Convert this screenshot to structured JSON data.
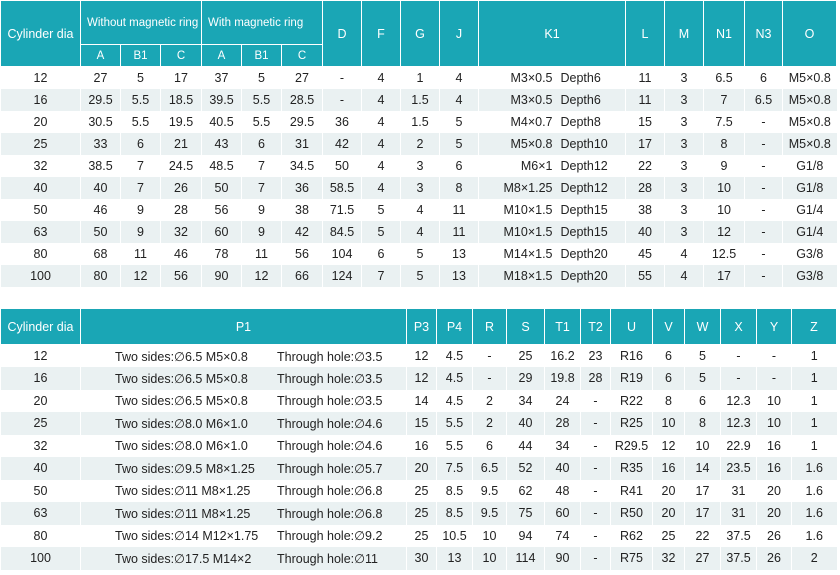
{
  "table1": {
    "headers": {
      "cylinder": "Cylinder dia",
      "without": "Without magnetic ring",
      "with": "With magnetic ring",
      "a": "A",
      "b1": "B1",
      "c": "C",
      "d": "D",
      "f": "F",
      "g": "G",
      "j": "J",
      "k1": "K1",
      "l": "L",
      "m": "M",
      "n1": "N1",
      "n3": "N3",
      "o": "O"
    },
    "rows": [
      [
        "12",
        "27",
        "5",
        "17",
        "37",
        "5",
        "27",
        "-",
        "4",
        "1",
        "4",
        "M3×0.5",
        "Depth6",
        "11",
        "3",
        "6.5",
        "6",
        "M5×0.8"
      ],
      [
        "16",
        "29.5",
        "5.5",
        "18.5",
        "39.5",
        "5.5",
        "28.5",
        "-",
        "4",
        "1.5",
        "4",
        "M3×0.5",
        "Depth6",
        "11",
        "3",
        "7",
        "6.5",
        "M5×0.8"
      ],
      [
        "20",
        "30.5",
        "5.5",
        "19.5",
        "40.5",
        "5.5",
        "29.5",
        "36",
        "4",
        "1.5",
        "5",
        "M4×0.7",
        "Depth8",
        "15",
        "3",
        "7.5",
        "-",
        "M5×0.8"
      ],
      [
        "25",
        "33",
        "6",
        "21",
        "43",
        "6",
        "31",
        "42",
        "4",
        "2",
        "5",
        "M5×0.8",
        "Depth10",
        "17",
        "3",
        "8",
        "-",
        "M5×0.8"
      ],
      [
        "32",
        "38.5",
        "7",
        "24.5",
        "48.5",
        "7",
        "34.5",
        "50",
        "4",
        "3",
        "6",
        "M6×1",
        "Depth12",
        "22",
        "3",
        "9",
        "-",
        "G1/8"
      ],
      [
        "40",
        "40",
        "7",
        "26",
        "50",
        "7",
        "36",
        "58.5",
        "4",
        "3",
        "8",
        "M8×1.25",
        "Depth12",
        "28",
        "3",
        "10",
        "-",
        "G1/8"
      ],
      [
        "50",
        "46",
        "9",
        "28",
        "56",
        "9",
        "38",
        "71.5",
        "5",
        "4",
        "11",
        "M10×1.5",
        "Depth15",
        "38",
        "3",
        "10",
        "-",
        "G1/4"
      ],
      [
        "63",
        "50",
        "9",
        "32",
        "60",
        "9",
        "42",
        "84.5",
        "5",
        "4",
        "11",
        "M10×1.5",
        "Depth15",
        "40",
        "3",
        "12",
        "-",
        "G1/4"
      ],
      [
        "80",
        "68",
        "11",
        "46",
        "78",
        "11",
        "56",
        "104",
        "6",
        "5",
        "13",
        "M14×1.5",
        "Depth20",
        "45",
        "4",
        "12.5",
        "-",
        "G3/8"
      ],
      [
        "100",
        "80",
        "12",
        "56",
        "90",
        "12",
        "66",
        "124",
        "7",
        "5",
        "13",
        "M18×1.5",
        "Depth20",
        "55",
        "4",
        "17",
        "-",
        "G3/8"
      ]
    ]
  },
  "table2": {
    "headers": {
      "cylinder": "Cylinder dia",
      "p1": "P1",
      "p3": "P3",
      "p4": "P4",
      "r": "R",
      "s": "S",
      "t1": "T1",
      "t2": "T2",
      "u": "U",
      "v": "V",
      "w": "W",
      "x": "X",
      "y": "Y",
      "z": "Z"
    },
    "rows": [
      [
        "12",
        "Two sides:∅6.5 M5×0.8",
        "Through hole:∅3.5",
        "12",
        "4.5",
        "-",
        "25",
        "16.2",
        "23",
        "R16",
        "6",
        "5",
        "-",
        "-",
        "1"
      ],
      [
        "16",
        "Two sides:∅6.5 M5×0.8",
        "Through hole:∅3.5",
        "12",
        "4.5",
        "-",
        "29",
        "19.8",
        "28",
        "R19",
        "6",
        "5",
        "-",
        "-",
        "1"
      ],
      [
        "20",
        "Two sides:∅6.5 M5×0.8",
        "Through hole:∅3.5",
        "14",
        "4.5",
        "2",
        "34",
        "24",
        "-",
        "R22",
        "8",
        "6",
        "12.3",
        "10",
        "1"
      ],
      [
        "25",
        "Two sides:∅8.0 M6×1.0",
        "Through hole:∅4.6",
        "15",
        "5.5",
        "2",
        "40",
        "28",
        "-",
        "R25",
        "10",
        "8",
        "12.3",
        "10",
        "1"
      ],
      [
        "32",
        "Two sides:∅8.0 M6×1.0",
        "Through hole:∅4.6",
        "16",
        "5.5",
        "6",
        "44",
        "34",
        "-",
        "R29.5",
        "12",
        "10",
        "22.9",
        "16",
        "1"
      ],
      [
        "40",
        "Two sides:∅9.5 M8×1.25",
        "Through hole:∅5.7",
        "20",
        "7.5",
        "6.5",
        "52",
        "40",
        "-",
        "R35",
        "16",
        "14",
        "23.5",
        "16",
        "1.6"
      ],
      [
        "50",
        "Two sides:∅11 M8×1.25",
        "Through hole:∅6.8",
        "25",
        "8.5",
        "9.5",
        "62",
        "48",
        "-",
        "R41",
        "20",
        "17",
        "31",
        "20",
        "1.6"
      ],
      [
        "63",
        "Two sides:∅11 M8×1.25",
        "Through hole:∅6.8",
        "25",
        "8.5",
        "9.5",
        "75",
        "60",
        "-",
        "R50",
        "20",
        "17",
        "31",
        "20",
        "1.6"
      ],
      [
        "80",
        "Two sides:∅14 M12×1.75",
        "Through hole:∅9.2",
        "25",
        "10.5",
        "10",
        "94",
        "74",
        "-",
        "R62",
        "25",
        "22",
        "37.5",
        "26",
        "1.6"
      ],
      [
        "100",
        "Two sides:∅17.5 M14×2",
        "Through hole:∅11",
        "30",
        "13",
        "10",
        "114",
        "90",
        "-",
        "R75",
        "32",
        "27",
        "37.5",
        "26",
        "2"
      ]
    ]
  }
}
